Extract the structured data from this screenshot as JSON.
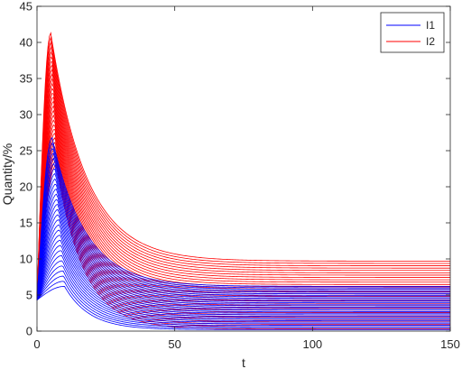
{
  "chart_data": {
    "type": "line",
    "xlabel": "t",
    "ylabel": "Quantity/%",
    "xlim": [
      0,
      150
    ],
    "ylim": [
      0,
      45
    ],
    "xticks": [
      0,
      50,
      100,
      150
    ],
    "yticks": [
      0,
      5,
      10,
      15,
      20,
      25,
      30,
      35,
      40,
      45
    ],
    "grid": false,
    "legend_position": "top-right",
    "legend": [
      {
        "label": "I1",
        "color": "#0000ff"
      },
      {
        "label": "I2",
        "color": "#ff0000"
      }
    ],
    "series": [
      {
        "name": "I1",
        "color": "#0000ff",
        "curve_count": 30,
        "start_value": 4.3,
        "peak_t_range": [
          5.5,
          10
        ],
        "peak_value_range": [
          6.2,
          26.8
        ],
        "final_value_range": [
          0.2,
          6.2
        ]
      },
      {
        "name": "I2",
        "color": "#ff0000",
        "curve_count": 30,
        "start_value": 4.3,
        "peak_t_range": [
          5,
          7
        ],
        "peak_value_range": [
          23,
          41.3
        ],
        "final_value_range": [
          0.3,
          9.7
        ]
      }
    ]
  }
}
